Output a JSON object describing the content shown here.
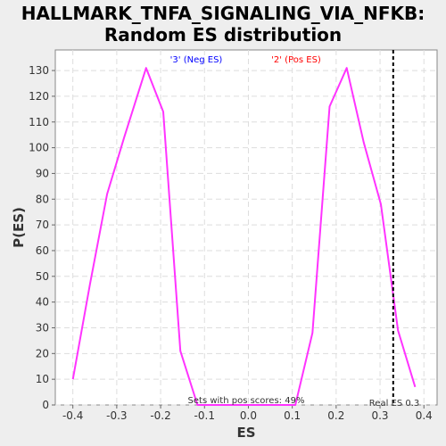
{
  "chart_data": {
    "type": "line",
    "title": "HALLMARK_TNFA_SIGNALING_VIA_NFKB:",
    "subtitle": "Random ES distribution",
    "xlabel": "ES",
    "ylabel": "P(ES)",
    "xlim": [
      -0.44,
      0.43
    ],
    "ylim": [
      0,
      138
    ],
    "xticks": [
      "-0.4",
      "-0.3",
      "-0.2",
      "-0.1",
      "0.0",
      "0.1",
      "0.2",
      "0.3",
      "0.4"
    ],
    "xtick_values": [
      -0.4,
      -0.3,
      -0.2,
      -0.1,
      0.0,
      0.1,
      0.2,
      0.3,
      0.4
    ],
    "yticks": [
      "0",
      "10",
      "20",
      "30",
      "40",
      "50",
      "60",
      "70",
      "80",
      "90",
      "100",
      "110",
      "120",
      "130"
    ],
    "ytick_values": [
      0,
      10,
      20,
      30,
      40,
      50,
      60,
      70,
      80,
      90,
      100,
      110,
      120,
      130
    ],
    "grid": true,
    "line_color": "#ff33ff",
    "series": [
      {
        "x": [
          -0.4,
          -0.361,
          -0.322,
          -0.283,
          -0.233,
          -0.194,
          -0.155,
          -0.116,
          -0.077,
          0.107,
          0.146,
          0.185,
          0.224,
          0.263,
          0.302,
          0.341,
          0.38
        ],
        "y": [
          10,
          47,
          82,
          104,
          131,
          114,
          21,
          0,
          0,
          0,
          28,
          116,
          131,
          102,
          78,
          29,
          7
        ]
      }
    ],
    "annotations": {
      "neg_label": "'3' (Neg ES)",
      "neg_color": "#0000ff",
      "pos_label": "'2' (Pos ES)",
      "pos_color": "#ff0000",
      "pos_scores_text": "Sets with pos scores: 49%",
      "real_es_text": "Real ES 0.3",
      "real_es_value": 0.33
    }
  }
}
